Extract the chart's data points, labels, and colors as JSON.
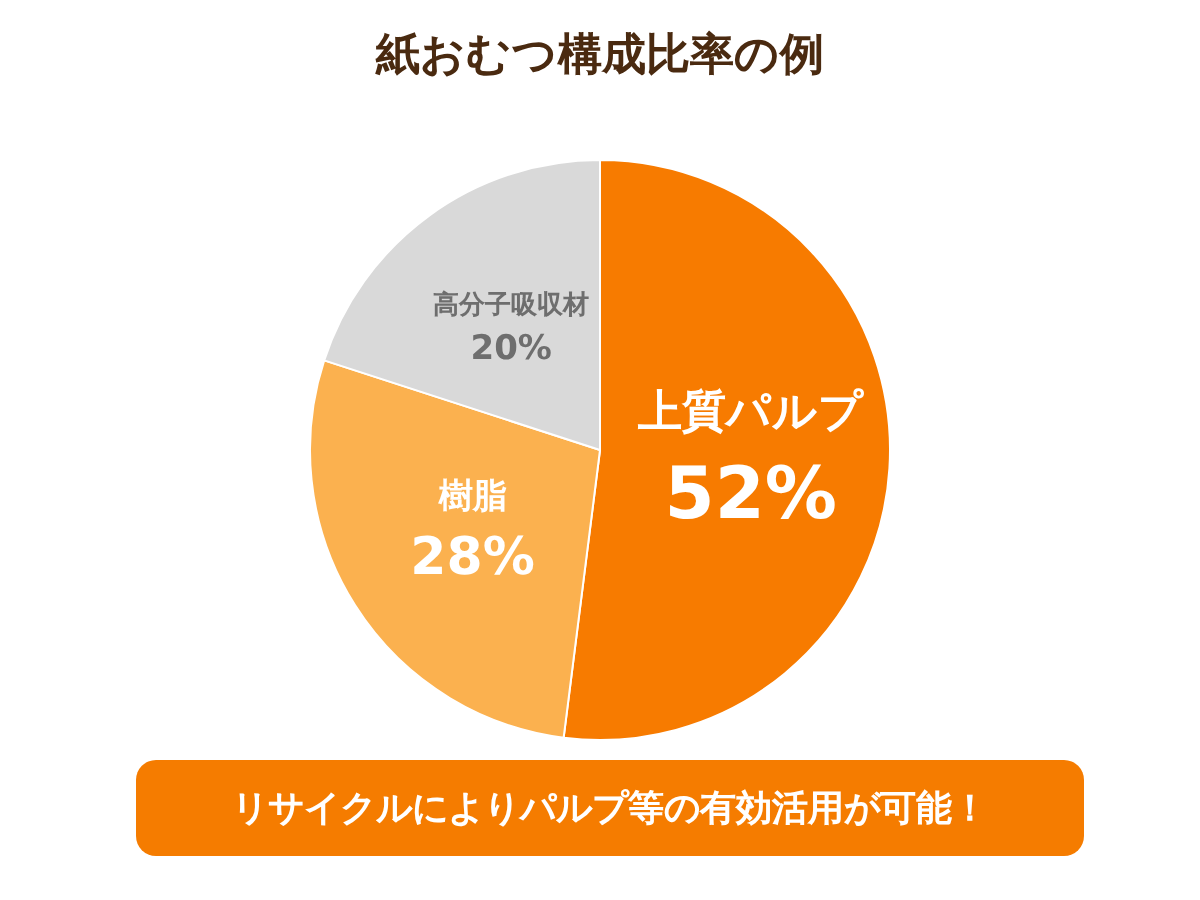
{
  "chart_data": {
    "type": "pie",
    "title": "紙おむつ構成比率の例",
    "categories": [
      "上質パルプ",
      "樹脂",
      "高分子吸収材"
    ],
    "values": [
      52,
      28,
      20
    ],
    "value_labels": [
      "52%",
      "28%",
      "20%"
    ],
    "colors": [
      "#f77b00",
      "#fbb14f",
      "#d9d9d9"
    ],
    "legend": false,
    "annotations": [
      "リサイクルによりパルプ等の有効活用が可能！"
    ]
  }
}
